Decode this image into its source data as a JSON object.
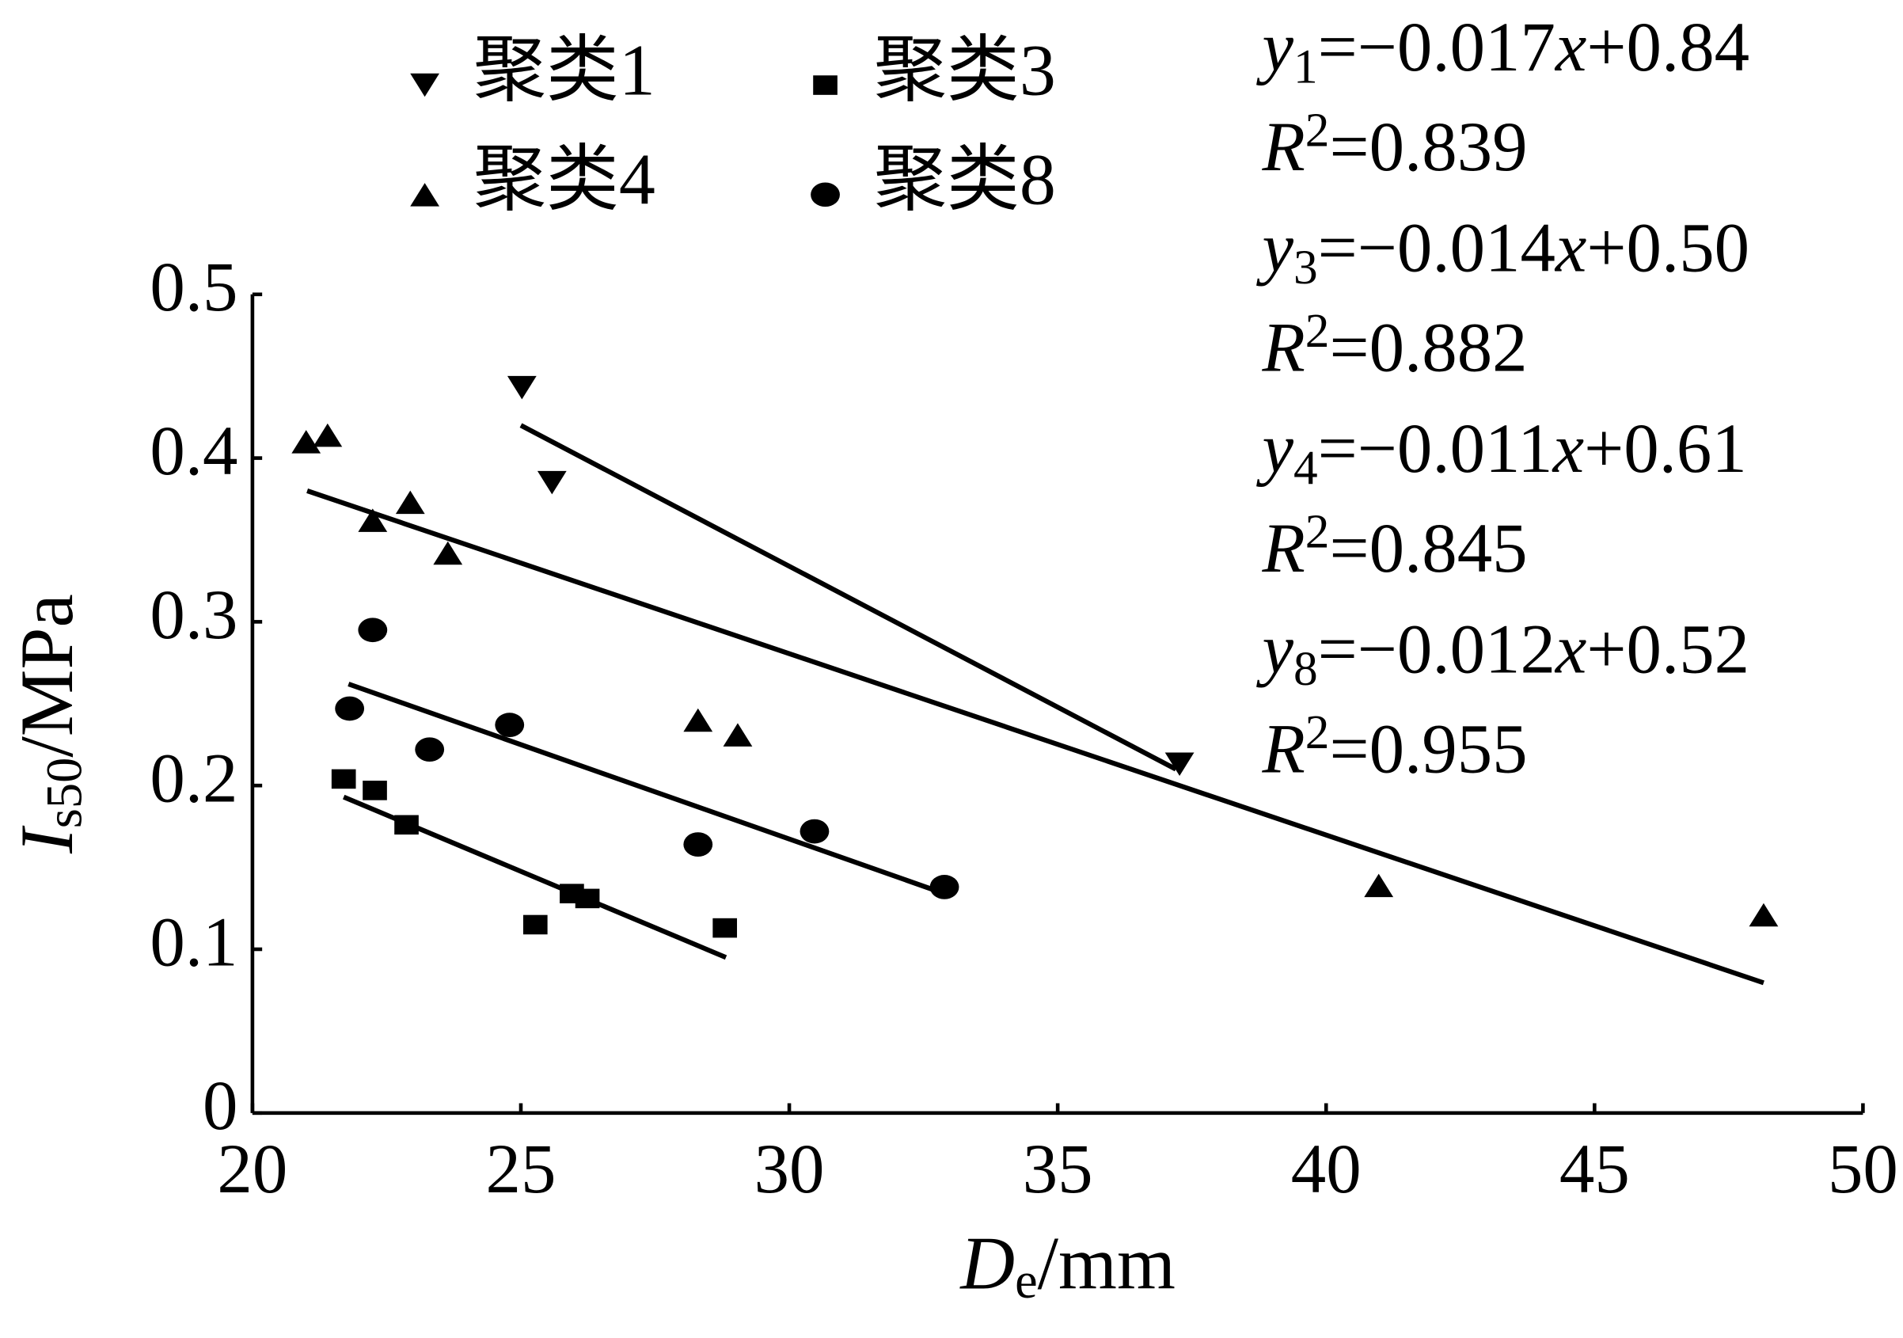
{
  "chart_data": {
    "type": "scatter",
    "x_label": {
      "var": "D",
      "sub": "e",
      "unit": "/mm"
    },
    "y_label": {
      "var": "I",
      "sub": "s50",
      "unit": "/MPa"
    },
    "xlim": [
      20,
      50
    ],
    "xticks": [
      20,
      25,
      30,
      35,
      40,
      45,
      50
    ],
    "ylim": [
      0,
      0.5
    ],
    "yticks": [
      0,
      0.1,
      0.2,
      0.3,
      0.4,
      0.5
    ],
    "series": [
      {
        "name": "聚类1",
        "color": "#000000",
        "marker": "triangle-down",
        "x": [
          25.02,
          25.58,
          37.27
        ],
        "values": [
          0.443,
          0.385,
          0.213
        ]
      },
      {
        "name": "聚类3",
        "color": "#000000",
        "marker": "square",
        "x": [
          21.7,
          22.28,
          22.87,
          25.27,
          25.95,
          26.24,
          28.8
        ],
        "values": [
          0.204,
          0.197,
          0.176,
          0.115,
          0.134,
          0.131,
          0.113
        ]
      },
      {
        "name": "聚类4",
        "color": "#000000",
        "marker": "triangle-up",
        "x": [
          21.0,
          21.4,
          22.24,
          22.94,
          23.64,
          28.3,
          29.04,
          40.98,
          48.15
        ],
        "values": [
          0.41,
          0.414,
          0.362,
          0.373,
          0.342,
          0.24,
          0.231,
          0.139,
          0.121
        ]
      },
      {
        "name": "聚类8",
        "color": "#000000",
        "marker": "circle",
        "x": [
          21.81,
          22.24,
          23.3,
          24.79,
          28.3,
          30.47,
          32.89
        ],
        "values": [
          0.247,
          0.295,
          0.222,
          0.237,
          0.164,
          0.172,
          0.138
        ]
      }
    ],
    "fit_lines": [
      {
        "x": [
          25.0,
          37.2
        ],
        "values": [
          0.42,
          0.21
        ]
      },
      {
        "x": [
          21.7,
          28.82
        ],
        "values": [
          0.193,
          0.095
        ]
      },
      {
        "x": [
          21.02,
          48.15
        ],
        "values": [
          0.38,
          0.0795
        ]
      },
      {
        "x": [
          21.79,
          32.89
        ],
        "values": [
          0.262,
          0.134
        ]
      }
    ],
    "equations": [
      {
        "y": "y",
        "sub": "1",
        "a": "=−0.017",
        "x": "x",
        "b": "+0.84",
        "R": "R",
        "sup": "2",
        "r2": "=0.839"
      },
      {
        "y": "y",
        "sub": "3",
        "a": "=−0.014",
        "x": "x",
        "b": "+0.50",
        "R": "R",
        "sup": "2",
        "r2": "=0.882"
      },
      {
        "y": "y",
        "sub": "4",
        "a": "=−0.011",
        "x": "x",
        "b": "+0.61",
        "R": "R",
        "sup": "2",
        "r2": "=0.845"
      },
      {
        "y": "y",
        "sub": "8",
        "a": "=−0.012",
        "x": "x",
        "b": "+0.52",
        "R": "R",
        "sup": "2",
        "r2": "=0.955"
      }
    ]
  }
}
